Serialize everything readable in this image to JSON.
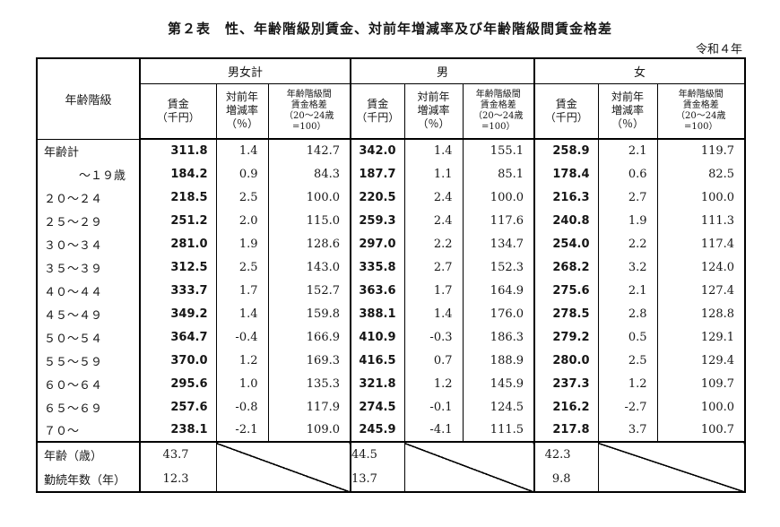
{
  "title": "第２表　性、年齢階級別賃金、対前年増減率及び年齢階級間賃金格差",
  "era_label": "令和４年",
  "header": {
    "age_class": "年齢階級",
    "groups": [
      "男女計",
      "男",
      "女"
    ],
    "sub_columns": [
      "賃金\n（千円）",
      "対前年\n増減率\n（％）",
      "年齢階級間\n賃金格差\n（20～24歳\n=100）"
    ]
  },
  "rows": [
    {
      "label": "年齢計",
      "indent": false,
      "cells": [
        "311.8",
        "1.4",
        "142.7",
        "342.0",
        "1.4",
        "155.1",
        "258.9",
        "2.1",
        "119.7"
      ]
    },
    {
      "label": "～１９歳",
      "indent": true,
      "cells": [
        "184.2",
        "0.9",
        "84.3",
        "187.7",
        "1.1",
        "85.1",
        "178.4",
        "0.6",
        "82.5"
      ]
    },
    {
      "label": "２０～２４",
      "indent": false,
      "cells": [
        "218.5",
        "2.5",
        "100.0",
        "220.5",
        "2.4",
        "100.0",
        "216.3",
        "2.7",
        "100.0"
      ]
    },
    {
      "label": "２５～２９",
      "indent": false,
      "cells": [
        "251.2",
        "2.0",
        "115.0",
        "259.3",
        "2.4",
        "117.6",
        "240.8",
        "1.9",
        "111.3"
      ]
    },
    {
      "label": "３０～３４",
      "indent": false,
      "cells": [
        "281.0",
        "1.9",
        "128.6",
        "297.0",
        "2.2",
        "134.7",
        "254.0",
        "2.2",
        "117.4"
      ]
    },
    {
      "label": "３５～３９",
      "indent": false,
      "cells": [
        "312.5",
        "2.5",
        "143.0",
        "335.8",
        "2.7",
        "152.3",
        "268.2",
        "3.2",
        "124.0"
      ]
    },
    {
      "label": "４０～４４",
      "indent": false,
      "cells": [
        "333.7",
        "1.7",
        "152.7",
        "363.6",
        "1.7",
        "164.9",
        "275.6",
        "2.1",
        "127.4"
      ]
    },
    {
      "label": "４５～４９",
      "indent": false,
      "cells": [
        "349.2",
        "1.4",
        "159.8",
        "388.1",
        "1.4",
        "176.0",
        "278.5",
        "2.8",
        "128.8"
      ]
    },
    {
      "label": "５０～５４",
      "indent": false,
      "cells": [
        "364.7",
        "-0.4",
        "166.9",
        "410.9",
        "-0.3",
        "186.3",
        "279.2",
        "0.5",
        "129.1"
      ]
    },
    {
      "label": "５５～５９",
      "indent": false,
      "cells": [
        "370.0",
        "1.2",
        "169.3",
        "416.5",
        "0.7",
        "188.9",
        "280.0",
        "2.5",
        "129.4"
      ]
    },
    {
      "label": "６０～６４",
      "indent": false,
      "cells": [
        "295.6",
        "1.0",
        "135.3",
        "321.8",
        "1.2",
        "145.9",
        "237.3",
        "1.2",
        "109.7"
      ]
    },
    {
      "label": "６５～６９",
      "indent": false,
      "cells": [
        "257.6",
        "-0.8",
        "117.9",
        "274.5",
        "-0.1",
        "124.5",
        "216.2",
        "-2.7",
        "100.0"
      ]
    },
    {
      "label": "７０～",
      "indent": false,
      "cells": [
        "238.1",
        "-2.1",
        "109.0",
        "245.9",
        "-4.1",
        "111.5",
        "217.8",
        "3.7",
        "100.7"
      ]
    }
  ],
  "summary_rows": [
    {
      "label": "年齢（歳）",
      "values": [
        "43.7",
        "44.5",
        "42.3"
      ]
    },
    {
      "label": "勤続年数（年）",
      "values": [
        "12.3",
        "13.7",
        "9.8"
      ]
    }
  ]
}
